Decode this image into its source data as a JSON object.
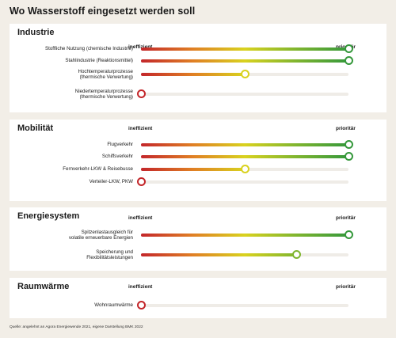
{
  "title": "Wo Wasserstoff eingesetzt werden soll",
  "scale": {
    "low": "ineffizient",
    "high": "prioritär"
  },
  "colors": {
    "red": "#c3262a",
    "orange": "#e07f24",
    "yellow": "#d9d21f",
    "green": "#35983b",
    "track": "#efece7",
    "panel": "#ffffff",
    "background": "#f2eee7"
  },
  "chart_data": [
    {
      "type": "bar",
      "title": "Industrie",
      "categories": [
        "Stoffliche Nutzung (chemische Industrie)",
        "Stahlindustrie (Reaktionsmittel)",
        "Hochtemperaturprozesse (thermische Verwertung)",
        "Niedertemperaturprozesse (thermische Verwertung)"
      ],
      "label_lines": [
        [
          "Stoffliche Nutzung (chemische Industrie)"
        ],
        [
          "Stahlindustrie (Reaktionsmittel)"
        ],
        [
          "Hochtemperaturprozesse",
          "(thermische Verwertung)"
        ],
        [
          "Niedertemperaturprozesse",
          "(thermische Verwertung)"
        ]
      ],
      "values": [
        1.0,
        1.0,
        0.5,
        0.0
      ],
      "xlim": [
        0,
        1
      ]
    },
    {
      "type": "bar",
      "title": "Mobilität",
      "categories": [
        "Flugverkehr",
        "Schiffsverkehr",
        "Fernverkehr-LKW & Reisebusse",
        "Verteiler-LKW, PKW"
      ],
      "label_lines": [
        [
          "Flugverkehr"
        ],
        [
          "Schiffsverkehr"
        ],
        [
          "Fernverkehr-LKW & Reisebusse"
        ],
        [
          "Verteiler-LKW, PKW"
        ]
      ],
      "values": [
        1.0,
        1.0,
        0.5,
        0.0
      ],
      "xlim": [
        0,
        1
      ]
    },
    {
      "type": "bar",
      "title": "Energiesystem",
      "categories": [
        "Spitzenlastausgleich für volatile erneuerbare Energien",
        "Speicherung und Flexibilitätsleistungen"
      ],
      "label_lines": [
        [
          "Spitzenlastausgleich für",
          "volatile erneuerbare Energien"
        ],
        [
          "Speicherung und",
          "Flexibilitätsleistungen"
        ]
      ],
      "values": [
        1.0,
        0.75
      ],
      "xlim": [
        0,
        1
      ]
    },
    {
      "type": "bar",
      "title": "Raumwärme",
      "categories": [
        "Wohnraumwärme"
      ],
      "label_lines": [
        [
          "Wohnraumwärme"
        ]
      ],
      "values": [
        0.0
      ],
      "xlim": [
        0,
        1
      ]
    }
  ],
  "source": "Quelle: angelehnt an Agora Energiewende 2021, eigene Darstellung BMK 2022"
}
